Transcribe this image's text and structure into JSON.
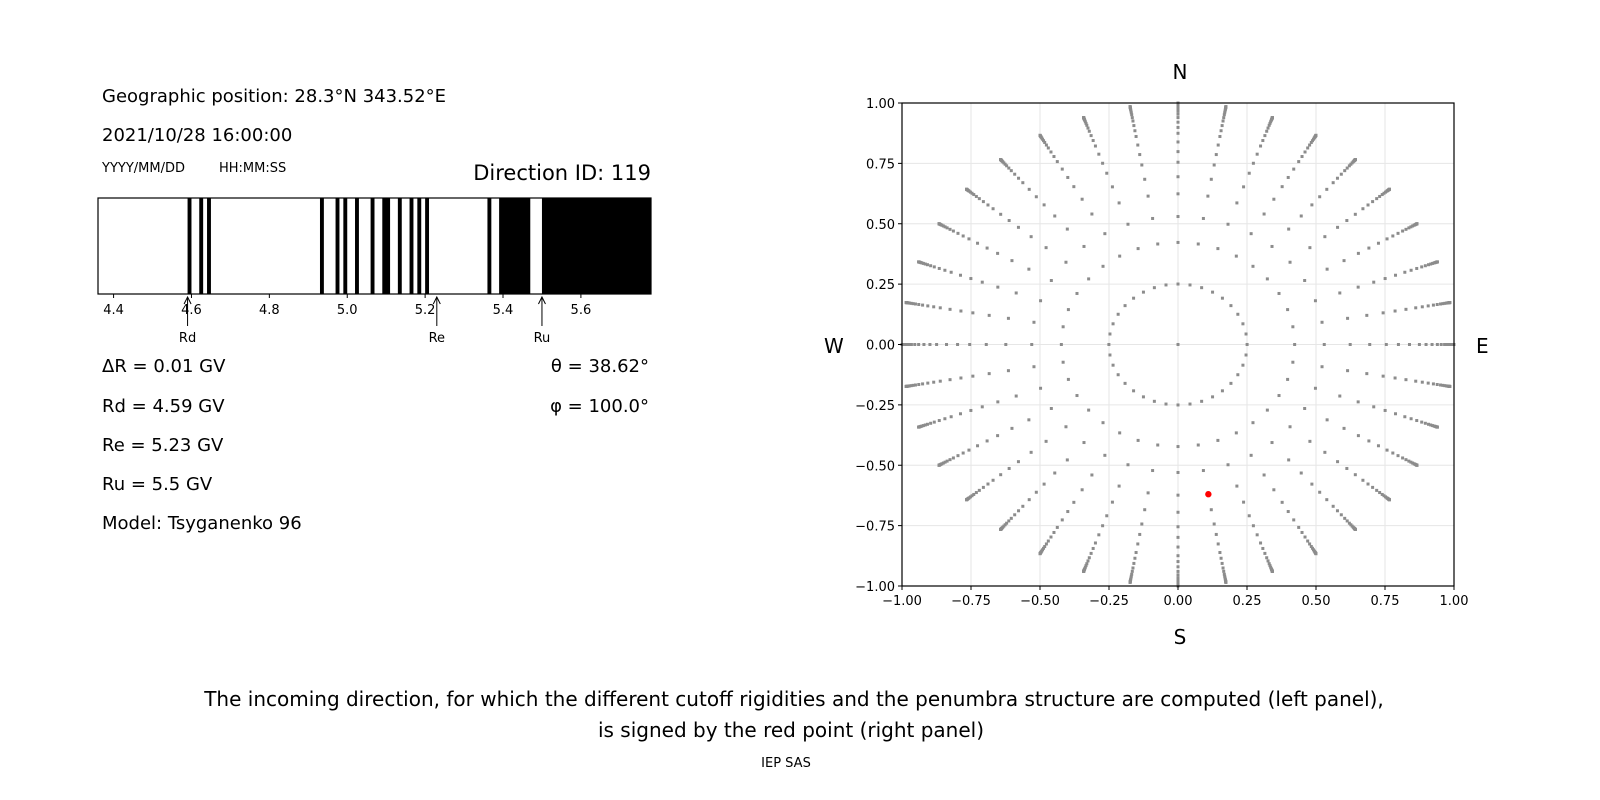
{
  "left_panel": {
    "geo_position": "Geographic position: 28.3°N 343.52°E",
    "datetime": "2021/10/28 16:00:00",
    "date_format": "YYYY/MM/DD",
    "time_format": "HH:MM:SS",
    "direction_id": "Direction ID: 119",
    "delta_r": "ΔR = 0.01 GV",
    "rd": "Rd = 4.59 GV",
    "re": "Re = 5.23 GV",
    "ru": "Ru = 5.5 GV",
    "model": "Model: Tsyganenko 96",
    "theta": "θ = 38.62°",
    "phi": "φ = 100.0°"
  },
  "caption": {
    "line1": "The incoming direction, for which the different cutoff rigidities and the penumbra structure are computed (left panel),",
    "line2": "is signed by the red point (right panel)",
    "credit": "IEP SAS"
  },
  "chart_data": [
    {
      "type": "bar",
      "title": "",
      "xlim": [
        4.36,
        5.78
      ],
      "xticks": [
        "4.4",
        "4.6",
        "4.8",
        "5.0",
        "5.2",
        "5.4",
        "5.6"
      ],
      "black_intervals_gv": [
        [
          4.59,
          4.6
        ],
        [
          4.62,
          4.63
        ],
        [
          4.64,
          4.65
        ],
        [
          4.93,
          4.94
        ],
        [
          4.97,
          4.98
        ],
        [
          4.99,
          5.0
        ],
        [
          5.02,
          5.03
        ],
        [
          5.06,
          5.07
        ],
        [
          5.09,
          5.11
        ],
        [
          5.13,
          5.14
        ],
        [
          5.16,
          5.17
        ],
        [
          5.18,
          5.19
        ],
        [
          5.2,
          5.21
        ],
        [
          5.36,
          5.37
        ],
        [
          5.39,
          5.47
        ],
        [
          5.5,
          5.78
        ]
      ],
      "colors": {
        "allowed": "#000000",
        "forbidden": "#ffffff"
      },
      "markers": [
        {
          "label": "Rd",
          "value": 4.59
        },
        {
          "label": "Re",
          "value": 5.23
        },
        {
          "label": "Ru",
          "value": 5.5
        }
      ]
    },
    {
      "type": "scatter",
      "xlim": [
        -1,
        1
      ],
      "ylim": [
        -1,
        1
      ],
      "grid": true,
      "xticks": [
        "−1.00",
        "−0.75",
        "−0.50",
        "−0.25",
        "0.00",
        "0.25",
        "0.50",
        "0.75",
        "1.00"
      ],
      "yticks": [
        "−1.00",
        "−0.75",
        "−0.50",
        "−0.25",
        "0.00",
        "0.25",
        "0.50",
        "0.75",
        "1.00"
      ],
      "compass": {
        "n": "N",
        "s": "S",
        "w": "W",
        "e": "E"
      },
      "grid_points": {
        "color": "#8c8c8c",
        "azimuth_step_deg": 10,
        "inner_ring_zenith_deg": 14.5,
        "spoke_zenith_deg": [
          25,
          32,
          38.6,
          44,
          49,
          53,
          57,
          61,
          64,
          67,
          70,
          72.5,
          75,
          77,
          79,
          81,
          82.5,
          84,
          85.5,
          87,
          88,
          89,
          90
        ],
        "center": [
          0,
          0
        ]
      },
      "highlight_point": {
        "x": 0.11,
        "y": -0.62,
        "color": "#ff0000"
      }
    }
  ]
}
